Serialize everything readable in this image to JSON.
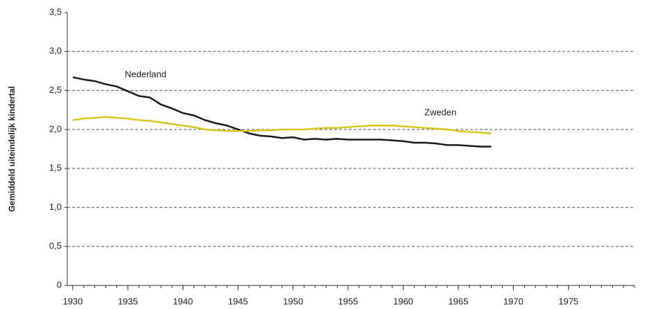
{
  "chart_data": {
    "type": "line",
    "y_label": "Gemiddeld uiteindelijk kindertal",
    "x": [
      1930,
      1931,
      1932,
      1933,
      1934,
      1935,
      1936,
      1937,
      1938,
      1939,
      1940,
      1941,
      1942,
      1943,
      1944,
      1945,
      1946,
      1947,
      1948,
      1949,
      1950,
      1951,
      1952,
      1953,
      1954,
      1955,
      1956,
      1957,
      1958,
      1959,
      1960,
      1961,
      1962,
      1963,
      1964,
      1965,
      1966,
      1967,
      1968
    ],
    "series": [
      {
        "name": "Nederland",
        "color": "#1a1a1a",
        "values": [
          2.67,
          2.64,
          2.62,
          2.58,
          2.55,
          2.49,
          2.43,
          2.41,
          2.32,
          2.27,
          2.21,
          2.18,
          2.12,
          2.08,
          2.05,
          2.0,
          1.95,
          1.92,
          1.91,
          1.89,
          1.9,
          1.87,
          1.88,
          1.87,
          1.88,
          1.87,
          1.87,
          1.87,
          1.87,
          1.86,
          1.85,
          1.83,
          1.83,
          1.82,
          1.8,
          1.8,
          1.79,
          1.78,
          1.78
        ]
      },
      {
        "name": "Zweden",
        "color": "#d4c81e",
        "values": [
          2.12,
          2.14,
          2.15,
          2.16,
          2.15,
          2.14,
          2.12,
          2.11,
          2.09,
          2.07,
          2.05,
          2.03,
          2.0,
          1.99,
          1.98,
          1.98,
          1.98,
          1.99,
          1.99,
          2.0,
          2.0,
          2.0,
          2.01,
          2.02,
          2.02,
          2.03,
          2.04,
          2.05,
          2.05,
          2.05,
          2.04,
          2.03,
          2.02,
          2.01,
          2.0,
          1.98,
          1.97,
          1.96,
          1.95
        ]
      }
    ],
    "xlim": [
      1929.5,
      1981
    ],
    "xticks": [
      1930,
      1935,
      1940,
      1945,
      1950,
      1955,
      1960,
      1965,
      1970,
      1975
    ],
    "ylim": [
      0,
      3.5
    ],
    "yticks": [
      0,
      {
        "value": 0.5,
        "label": "0,5"
      },
      {
        "value": 1,
        "label": "1,0"
      },
      {
        "value": 1.5,
        "label": "1,5"
      },
      {
        "value": 2,
        "label": "2,0"
      },
      {
        "value": 2.5,
        "label": "2,5"
      },
      {
        "value": 3,
        "label": "3,0"
      },
      {
        "value": 3.5,
        "label": "3,5"
      }
    ],
    "grid": true
  }
}
